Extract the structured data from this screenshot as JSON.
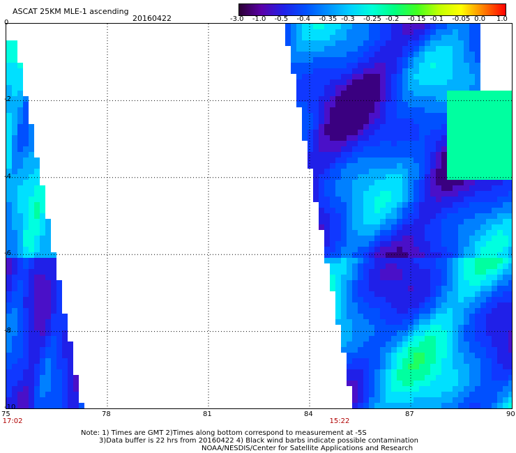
{
  "header": {
    "title": "ASCAT 25KM MLE-1 ascending",
    "date": "20160422"
  },
  "colorbar": {
    "labels": [
      "-3.0",
      "-1.0",
      "-0.5",
      "-0.4",
      "-0.35",
      "-0.3",
      "-0.25",
      "-0.2",
      "-0.15",
      "-0.1",
      "-0.05",
      "0.0",
      "1.0"
    ],
    "colors": [
      "#2b0033",
      "#5a00a8",
      "#2020e8",
      "#0050ff",
      "#0090ff",
      "#00d0ff",
      "#00ffd8",
      "#00ff80",
      "#40ff20",
      "#c0ff00",
      "#ffff00",
      "#ff8000",
      "#ff0000"
    ]
  },
  "map": {
    "x_ticks": [
      "75",
      "78",
      "81",
      "84",
      "87",
      "90"
    ],
    "y_ticks": [
      "0",
      "-2",
      "-4",
      "-6",
      "-8",
      "-10"
    ],
    "lon_range": [
      75,
      90
    ],
    "lat_range": [
      -10,
      0
    ],
    "time_labels": [
      {
        "lon": 75.2,
        "text": "17:02"
      },
      {
        "lon": 84.9,
        "text": "15:22"
      }
    ]
  },
  "notes": {
    "line1": "Note: 1) Times are GMT 2)Times along bottom correspond to measurement at -5S",
    "line2": "3)Data buffer is 22 hrs from 20160422 4) Black wind barbs indicate possible contamination",
    "line3": "NOAA/NESDIS/Center for Satellite Applications and Research"
  }
}
